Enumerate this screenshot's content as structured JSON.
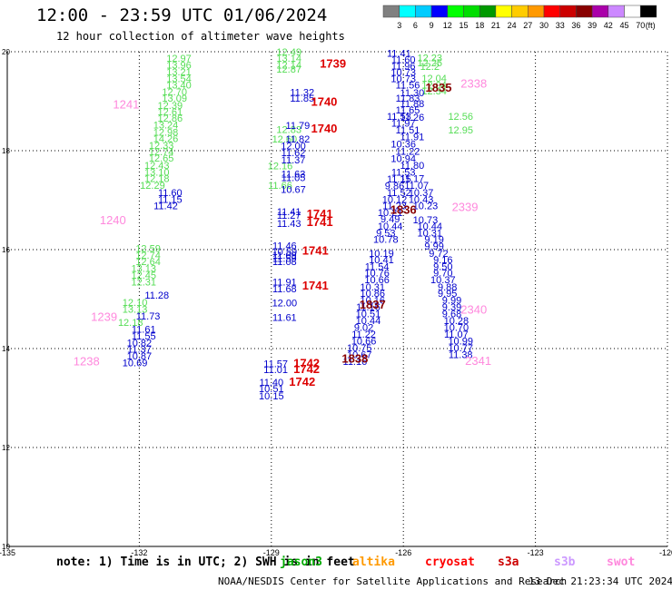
{
  "header": {
    "title": "12:00 - 23:59 UTC 01/06/2024",
    "subtitle": "12 hour collection of altimeter wave heights"
  },
  "colorbar": {
    "labels": [
      "3",
      "6",
      "9",
      "12",
      "15",
      "18",
      "21",
      "24",
      "27",
      "30",
      "33",
      "36",
      "39",
      "42",
      "45",
      "70"
    ],
    "unit": "(ft)",
    "colors": [
      "#808080",
      "#00ffff",
      "#00ccff",
      "#0000ff",
      "#00ff00",
      "#00dd00",
      "#009900",
      "#ffff00",
      "#ffcc00",
      "#ff9900",
      "#ff0000",
      "#cc0000",
      "#880000",
      "#aa00aa",
      "#cc88ff",
      "#ffffff",
      "#000000"
    ]
  },
  "legend": {
    "note": "note: 1) Time is in UTC; 2) SWH is in feet",
    "items": [
      {
        "label": "jason3",
        "color": "#00aa00"
      },
      {
        "label": "altika",
        "color": "#ff9900"
      },
      {
        "label": "cryosat",
        "color": "#ff0000"
      },
      {
        "label": "s3a",
        "color": "#cc0000"
      },
      {
        "label": "s3b",
        "color": "#cc99ff"
      },
      {
        "label": "swot",
        "color": "#ff88dd"
      }
    ]
  },
  "footer": {
    "credit": "NOAA/NESDIS Center for Satellite Applications and Research",
    "date": "13 Dec 21:23:34 UTC 2024"
  },
  "chart_data": {
    "type": "scatter",
    "title": "12:00 - 23:59 UTC 01/06/2024",
    "subtitle": "12 hour collection of altimeter wave heights",
    "xlim": [
      -135,
      -120
    ],
    "ylim": [
      10,
      20
    ],
    "xticks": [
      "-135",
      "-132",
      "-129",
      "-126",
      "-123",
      "-120"
    ],
    "yticks": [
      "10",
      "12",
      "14",
      "16",
      "18",
      "20"
    ],
    "grid": true,
    "series": [
      {
        "name": "jason3",
        "color": "#55dd55",
        "points": [
          [
            -131.1,
            19.87,
            "12.97"
          ],
          [
            -131.1,
            19.73,
            "13.96"
          ],
          [
            -131.1,
            19.6,
            "13.21"
          ],
          [
            -131.1,
            19.46,
            "13.54"
          ],
          [
            -131.1,
            19.33,
            "13.40"
          ],
          [
            -131.2,
            19.19,
            "12.70"
          ],
          [
            -131.2,
            19.06,
            "13.09"
          ],
          [
            -131.3,
            18.92,
            "12.39"
          ],
          [
            -131.3,
            18.79,
            "12.61"
          ],
          [
            -131.3,
            18.66,
            "12.86"
          ],
          [
            -131.4,
            18.52,
            "13.24"
          ],
          [
            -131.4,
            18.38,
            "12.98"
          ],
          [
            -131.4,
            18.25,
            "14.26"
          ],
          [
            -131.5,
            18.11,
            "12.33"
          ],
          [
            -131.5,
            17.98,
            "12.74"
          ],
          [
            -131.5,
            17.85,
            "12.65"
          ],
          [
            -131.6,
            17.71,
            "12.43"
          ],
          [
            -131.6,
            17.57,
            "13.10"
          ],
          [
            -131.6,
            17.44,
            "12.18"
          ],
          [
            -131.7,
            17.3,
            "12.29"
          ],
          [
            -131.8,
            16.03,
            "12.59"
          ],
          [
            -131.8,
            15.89,
            "12.74"
          ],
          [
            -131.8,
            15.76,
            "12.64"
          ],
          [
            -131.9,
            15.62,
            "13.13"
          ],
          [
            -131.9,
            15.49,
            "12.45"
          ],
          [
            -131.9,
            15.35,
            "12.31"
          ],
          [
            -132.1,
            14.94,
            "12.10"
          ],
          [
            -132.1,
            14.8,
            "13.13"
          ],
          [
            -132.2,
            14.53,
            "12.18"
          ],
          [
            -128.6,
            20.0,
            "12.49"
          ],
          [
            -128.6,
            19.87,
            "13.14"
          ],
          [
            -128.6,
            19.73,
            "12.14"
          ],
          [
            -128.6,
            19.65,
            "12.87"
          ],
          [
            -128.6,
            18.43,
            "12.83"
          ],
          [
            -128.7,
            18.24,
            "12.60"
          ],
          [
            -128.8,
            17.7,
            "12.16"
          ],
          [
            -128.8,
            17.3,
            "11.66"
          ],
          [
            -125.4,
            19.88,
            "12.23"
          ],
          [
            -125.4,
            19.78,
            "12.25"
          ],
          [
            -125.4,
            19.71,
            "12.2"
          ],
          [
            -125.3,
            19.47,
            "12.04"
          ],
          [
            -125.3,
            19.33,
            "12.04"
          ],
          [
            -125.3,
            19.21,
            "12.34"
          ],
          [
            -124.7,
            18.7,
            "12.56"
          ],
          [
            -124.7,
            18.42,
            "12.95"
          ]
        ]
      },
      {
        "name": "altika",
        "color": "#0000cc",
        "points": [
          [
            -131.3,
            17.16,
            "11.60"
          ],
          [
            -131.3,
            17.02,
            "11.15"
          ],
          [
            -131.4,
            16.89,
            "11.42"
          ],
          [
            -131.6,
            15.08,
            "11.28"
          ],
          [
            -131.8,
            14.66,
            "11.73"
          ],
          [
            -131.9,
            14.39,
            "11.61"
          ],
          [
            -131.9,
            14.26,
            "11.55"
          ],
          [
            -132.0,
            14.12,
            "10.82"
          ],
          [
            -132.0,
            13.99,
            "11.37"
          ],
          [
            -132.0,
            13.85,
            "10.87"
          ],
          [
            -132.1,
            13.72,
            "10.69"
          ],
          [
            -128.3,
            19.18,
            "11.32"
          ],
          [
            -128.3,
            19.06,
            "11.85"
          ],
          [
            -128.4,
            18.51,
            "11.79"
          ],
          [
            -128.4,
            18.24,
            "11.82"
          ],
          [
            -128.5,
            18.1,
            "12.00"
          ],
          [
            -128.5,
            17.96,
            "11.62"
          ],
          [
            -128.5,
            17.82,
            "11.37"
          ],
          [
            -128.5,
            17.53,
            "11.63"
          ],
          [
            -128.5,
            17.46,
            "11.05"
          ],
          [
            -128.5,
            17.22,
            "10.67"
          ],
          [
            -128.6,
            16.77,
            "11.41"
          ],
          [
            -128.6,
            16.7,
            "11.27"
          ],
          [
            -128.6,
            16.53,
            "11.43"
          ],
          [
            -128.7,
            16.08,
            "11.46"
          ],
          [
            -128.7,
            15.96,
            "10.59"
          ],
          [
            -128.7,
            15.89,
            "11.09"
          ],
          [
            -128.7,
            15.83,
            "11.59"
          ],
          [
            -128.7,
            15.76,
            "11.08"
          ],
          [
            -128.7,
            15.35,
            "11.91"
          ],
          [
            -128.7,
            15.21,
            "11.68"
          ],
          [
            -128.7,
            14.93,
            "12.00"
          ],
          [
            -128.7,
            14.63,
            "11.61"
          ],
          [
            -128.9,
            13.7,
            "11.57"
          ],
          [
            -128.9,
            13.58,
            "11.01"
          ],
          [
            -129.0,
            13.32,
            "11.40"
          ],
          [
            -129.0,
            13.19,
            "10.51"
          ],
          [
            -129.0,
            13.05,
            "10.15"
          ],
          [
            -126.1,
            19.97,
            "11.41"
          ],
          [
            -126.0,
            19.84,
            "11.60"
          ],
          [
            -126.0,
            19.72,
            "11.96"
          ],
          [
            -126.0,
            19.59,
            "10.73"
          ],
          [
            -126.0,
            19.46,
            "10.73"
          ],
          [
            -125.9,
            19.33,
            "11.56"
          ],
          [
            -125.8,
            19.17,
            "11.30"
          ],
          [
            -125.9,
            19.06,
            "11.83"
          ],
          [
            -125.8,
            18.95,
            "11.88"
          ],
          [
            -125.9,
            18.83,
            "11.65"
          ],
          [
            -125.8,
            18.68,
            "11.26"
          ],
          [
            -126.1,
            18.7,
            "11.53"
          ],
          [
            -126.0,
            18.56,
            "11.97"
          ],
          [
            -125.9,
            18.42,
            "11.51"
          ],
          [
            -125.8,
            18.28,
            "11.91"
          ],
          [
            -126.0,
            18.14,
            "10.36"
          ],
          [
            -125.9,
            17.99,
            "11.22"
          ],
          [
            -126.0,
            17.84,
            "10.94"
          ],
          [
            -125.8,
            17.71,
            "11.80"
          ],
          [
            -126.0,
            17.57,
            "11.53"
          ],
          [
            -125.8,
            17.44,
            "11.17"
          ],
          [
            -126.1,
            17.43,
            "11.15"
          ],
          [
            -125.7,
            17.3,
            "11.07"
          ],
          [
            -126.2,
            17.29,
            "9.86"
          ],
          [
            -125.6,
            17.16,
            "10.37"
          ],
          [
            -126.1,
            17.16,
            "11.52"
          ],
          [
            -125.6,
            17.02,
            "10.43"
          ],
          [
            -126.2,
            17.02,
            "10.12"
          ],
          [
            -125.5,
            16.89,
            "10.23"
          ],
          [
            -126.2,
            16.89,
            "11.23"
          ],
          [
            -125.5,
            16.61,
            "10.73"
          ],
          [
            -126.3,
            16.75,
            "10.21"
          ],
          [
            -125.4,
            16.48,
            "10.44"
          ],
          [
            -126.3,
            16.62,
            "9.49"
          ],
          [
            -125.4,
            16.34,
            "10.31"
          ],
          [
            -126.3,
            16.48,
            "10.44"
          ],
          [
            -125.3,
            16.21,
            "9.19"
          ],
          [
            -126.4,
            16.34,
            "9.53"
          ],
          [
            -125.3,
            16.07,
            "9.99"
          ],
          [
            -126.4,
            16.21,
            "10.78"
          ],
          [
            -125.2,
            15.93,
            "9.72"
          ],
          [
            -126.5,
            15.93,
            "10.19"
          ],
          [
            -125.1,
            15.8,
            "9.16"
          ],
          [
            -126.5,
            15.8,
            "10.41"
          ],
          [
            -125.1,
            15.66,
            "9.50"
          ],
          [
            -126.6,
            15.66,
            "11.54"
          ],
          [
            -125.1,
            15.53,
            "9.70"
          ],
          [
            -126.6,
            15.53,
            "10.76"
          ],
          [
            -125.1,
            15.39,
            "10.37"
          ],
          [
            -126.6,
            15.39,
            "10.66"
          ],
          [
            -125.0,
            15.25,
            "9.88"
          ],
          [
            -126.7,
            15.25,
            "10.31"
          ],
          [
            -125.0,
            15.12,
            "9.95"
          ],
          [
            -126.7,
            15.12,
            "10.86"
          ],
          [
            -124.9,
            14.98,
            "9.99"
          ],
          [
            -126.7,
            14.98,
            "10.16"
          ],
          [
            -124.9,
            14.84,
            "9.39"
          ],
          [
            -126.8,
            14.84,
            "11.16"
          ],
          [
            -124.9,
            14.71,
            "9.68"
          ],
          [
            -126.8,
            14.71,
            "10.51"
          ],
          [
            -124.8,
            14.57,
            "10.28"
          ],
          [
            -126.8,
            14.57,
            "10.44"
          ],
          [
            -124.8,
            14.43,
            "10.70"
          ],
          [
            -126.9,
            14.43,
            "9.02"
          ],
          [
            -124.8,
            14.29,
            "11.07"
          ],
          [
            -126.9,
            14.29,
            "11.22"
          ],
          [
            -124.7,
            14.16,
            "10.99"
          ],
          [
            -126.9,
            14.16,
            "10.66"
          ],
          [
            -124.7,
            14.02,
            "10.77"
          ],
          [
            -127.0,
            14.02,
            "10.75"
          ],
          [
            -124.7,
            13.88,
            "11.38"
          ],
          [
            -127.0,
            13.88,
            "10.67"
          ],
          [
            -127.1,
            13.74,
            "11.16"
          ]
        ]
      },
      {
        "name": "cryosat",
        "color": "#dd0000",
        "points": [
          [
            -127.6,
            19.75,
            "1739"
          ],
          [
            -127.8,
            18.98,
            "1740"
          ],
          [
            -127.8,
            18.44,
            "1740"
          ],
          [
            -127.9,
            16.72,
            "1741"
          ],
          [
            -127.9,
            16.55,
            "1741"
          ],
          [
            -128.0,
            15.97,
            "1741"
          ],
          [
            -128.0,
            15.27,
            "1741"
          ],
          [
            -128.2,
            13.7,
            "1742"
          ],
          [
            -128.2,
            13.58,
            "1742"
          ],
          [
            -128.3,
            13.32,
            "1742"
          ]
        ]
      },
      {
        "name": "s3a",
        "color": "#880000",
        "points": [
          [
            -125.2,
            19.27,
            "1835"
          ],
          [
            -126.0,
            16.8,
            "1836"
          ],
          [
            -126.7,
            14.88,
            "1837"
          ],
          [
            -127.1,
            13.79,
            "1838"
          ]
        ]
      },
      {
        "name": "swot",
        "color": "#ff88dd",
        "points": [
          [
            -132.3,
            18.93,
            "1241"
          ],
          [
            -132.6,
            16.59,
            "1240"
          ],
          [
            -132.8,
            14.63,
            "1239"
          ],
          [
            -133.2,
            13.73,
            "1238"
          ],
          [
            -124.4,
            19.35,
            "2338"
          ],
          [
            -124.6,
            16.85,
            "2339"
          ],
          [
            -124.4,
            14.78,
            "2340"
          ],
          [
            -124.3,
            13.74,
            "2341"
          ]
        ]
      }
    ]
  }
}
